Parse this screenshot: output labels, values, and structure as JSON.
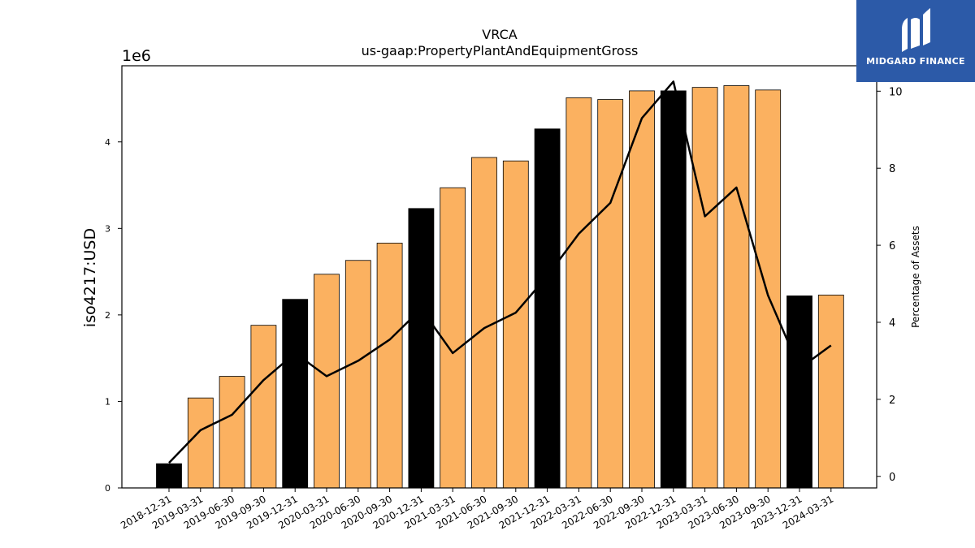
{
  "chart_data": {
    "type": "bar",
    "title": "VRCA",
    "subtitle": "us-gaap:PropertyPlantAndEquipmentGross",
    "ylabel": "iso4217:USD",
    "y_offset_label": "1e6",
    "y2label": "Percentage of Assets",
    "ylim": [
      0,
      4.88
    ],
    "y2lim": [
      -0.3,
      10.66
    ],
    "yticks": [
      "0",
      "1",
      "2",
      "3",
      "4"
    ],
    "y2ticks": [
      "0",
      "2",
      "4",
      "6",
      "8",
      "10"
    ],
    "categories": [
      "2018-12-31",
      "2019-03-31",
      "2019-06-30",
      "2019-09-30",
      "2019-12-31",
      "2020-03-31",
      "2020-06-30",
      "2020-09-30",
      "2020-12-31",
      "2021-03-31",
      "2021-06-30",
      "2021-09-30",
      "2021-12-31",
      "2022-03-31",
      "2022-06-30",
      "2022-09-30",
      "2022-12-31",
      "2023-03-31",
      "2023-06-30",
      "2023-09-30",
      "2023-12-31",
      "2024-03-31"
    ],
    "series": [
      {
        "type": "bar",
        "values": [
          0.28,
          1.04,
          1.29,
          1.88,
          2.18,
          2.47,
          2.63,
          2.83,
          3.23,
          3.47,
          3.82,
          3.78,
          4.15,
          4.51,
          4.49,
          4.59,
          4.59,
          4.63,
          4.65,
          4.6,
          2.22,
          2.23
        ],
        "annual": [
          true,
          false,
          false,
          false,
          true,
          false,
          false,
          false,
          true,
          false,
          false,
          false,
          true,
          false,
          false,
          false,
          true,
          false,
          false,
          false,
          true,
          false
        ]
      },
      {
        "type": "line",
        "axis": "right",
        "values": [
          0.35,
          1.2,
          1.6,
          2.5,
          3.2,
          2.6,
          3.0,
          3.55,
          4.35,
          3.2,
          3.85,
          4.25,
          5.2,
          6.3,
          7.1,
          9.3,
          10.25,
          6.75,
          7.5,
          4.7,
          2.8,
          3.4
        ]
      }
    ],
    "colors": {
      "annual_bar": "#000000",
      "quarter_bar": "#fbb160",
      "line": "#000000"
    },
    "grid": false
  },
  "logo": {
    "text": "MIDGARD FINANCE",
    "icon": "midgard-logo-icon",
    "background": "#2c5aa8"
  }
}
